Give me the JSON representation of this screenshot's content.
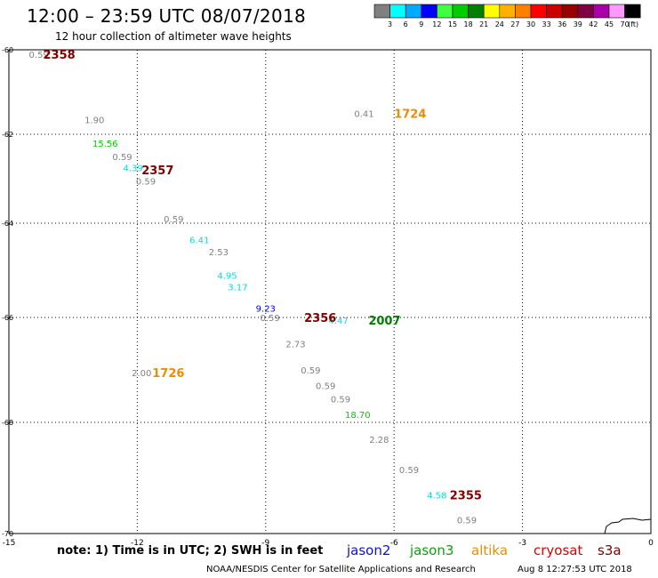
{
  "header": {
    "title": "12:00 – 23:59 UTC 08/07/2018",
    "subtitle": "12 hour collection of altimeter wave heights"
  },
  "footer": {
    "note": "note: 1) Time is in UTC; 2) SWH is in feet",
    "credit": "NOAA/NESDIS Center for Satellite Applications and Research",
    "timestamp": "Aug  8 12:27:53 UTC 2018"
  },
  "missions": [
    {
      "name": "jason2",
      "color": "#1010d0"
    },
    {
      "name": "jason3",
      "color": "#10a010"
    },
    {
      "name": "altika",
      "color": "#f08c00"
    },
    {
      "name": "cryosat",
      "color": "#e00000"
    },
    {
      "name": "s3a",
      "color": "#800000"
    }
  ],
  "colorbar": {
    "unit_label": "(ft)",
    "levels": [
      "3",
      "6",
      "9",
      "12",
      "15",
      "18",
      "21",
      "24",
      "27",
      "30",
      "33",
      "36",
      "39",
      "42",
      "45",
      "70"
    ],
    "colors": [
      "#808080",
      "#00ffff",
      "#00aaff",
      "#0000ff",
      "#40ff40",
      "#00cc00",
      "#008000",
      "#ffff00",
      "#ffb000",
      "#ff8000",
      "#ff0000",
      "#cc0000",
      "#990000",
      "#800040",
      "#aa00aa",
      "#ff99ff",
      "#000000"
    ]
  },
  "chart_data": {
    "type": "scatter",
    "title": "12:00 – 23:59 UTC 08/07/2018",
    "subtitle": "12 hour collection of altimeter wave heights",
    "xlabel": "",
    "ylabel": "",
    "xlim": [
      -15,
      0
    ],
    "ylim": [
      -70,
      -60
    ],
    "x_ticks": [
      "-15",
      "-12",
      "-9",
      "-6",
      "-3",
      "0"
    ],
    "y_ticks": [
      "-60",
      "-62",
      "-64",
      "-66",
      "-68",
      "-70"
    ],
    "grid": "dotted",
    "wave_heights": [
      {
        "lon": -14.3,
        "lat": -60.1,
        "value": "0.59",
        "color": "#808080"
      },
      {
        "lon": -13.0,
        "lat": -61.65,
        "value": "1.90",
        "color": "#808080"
      },
      {
        "lon": -12.75,
        "lat": -62.2,
        "value": "15.56",
        "color": "#00cc00"
      },
      {
        "lon": -12.35,
        "lat": -62.5,
        "value": "0.59",
        "color": "#808080"
      },
      {
        "lon": -12.1,
        "lat": -62.75,
        "value": "4.39",
        "color": "#00e0e0"
      },
      {
        "lon": -11.8,
        "lat": -63.05,
        "value": "0.59",
        "color": "#808080"
      },
      {
        "lon": -11.15,
        "lat": -63.9,
        "value": "0.59",
        "color": "#808080"
      },
      {
        "lon": -10.55,
        "lat": -64.35,
        "value": "6.41",
        "color": "#00e0e0"
      },
      {
        "lon": -10.1,
        "lat": -64.6,
        "value": "2.53",
        "color": "#808080"
      },
      {
        "lon": -9.9,
        "lat": -65.1,
        "value": "4.95",
        "color": "#00e0e0"
      },
      {
        "lon": -9.65,
        "lat": -65.35,
        "value": "3.17",
        "color": "#00e0e0"
      },
      {
        "lon": -9.0,
        "lat": -65.8,
        "value": "9.23",
        "color": "#0000ff"
      },
      {
        "lon": -8.9,
        "lat": -66.0,
        "value": "0.59",
        "color": "#808080"
      },
      {
        "lon": -7.3,
        "lat": -66.05,
        "value": "4.47",
        "color": "#00e0e0"
      },
      {
        "lon": -8.3,
        "lat": -66.5,
        "value": "2.73",
        "color": "#808080"
      },
      {
        "lon": -7.95,
        "lat": -67.0,
        "value": "0.59",
        "color": "#808080"
      },
      {
        "lon": -7.6,
        "lat": -67.3,
        "value": "0.59",
        "color": "#808080"
      },
      {
        "lon": -7.25,
        "lat": -67.55,
        "value": "0.59",
        "color": "#808080"
      },
      {
        "lon": -6.85,
        "lat": -67.85,
        "value": "18.70",
        "color": "#00cc00"
      },
      {
        "lon": -6.35,
        "lat": -68.3,
        "value": "2.28",
        "color": "#808080"
      },
      {
        "lon": -5.65,
        "lat": -68.85,
        "value": "0.59",
        "color": "#808080"
      },
      {
        "lon": -5.0,
        "lat": -69.3,
        "value": "4.58",
        "color": "#00e0e0"
      },
      {
        "lon": -4.3,
        "lat": -69.75,
        "value": "0.59",
        "color": "#808080"
      },
      {
        "lon": -6.7,
        "lat": -61.5,
        "value": "0.41",
        "color": "#808080"
      },
      {
        "lon": -11.9,
        "lat": -67.05,
        "value": "2.00",
        "color": "#808080"
      }
    ],
    "pass_times": [
      {
        "lon": -14.2,
        "lat": -60.1,
        "time": "2358",
        "color": "#800000"
      },
      {
        "lon": -11.9,
        "lat": -62.8,
        "time": "2357",
        "color": "#800000"
      },
      {
        "lon": -8.1,
        "lat": -66.0,
        "time": "2356",
        "color": "#800000"
      },
      {
        "lon": -6.6,
        "lat": -66.05,
        "time": "2007",
        "color": "#008000"
      },
      {
        "lon": -4.7,
        "lat": -69.3,
        "time": "2355",
        "color": "#800000"
      },
      {
        "lon": -6.0,
        "lat": -61.5,
        "time": "1724",
        "color": "#f08c00"
      },
      {
        "lon": -11.65,
        "lat": -67.05,
        "time": "1726",
        "color": "#f08c00"
      }
    ]
  }
}
